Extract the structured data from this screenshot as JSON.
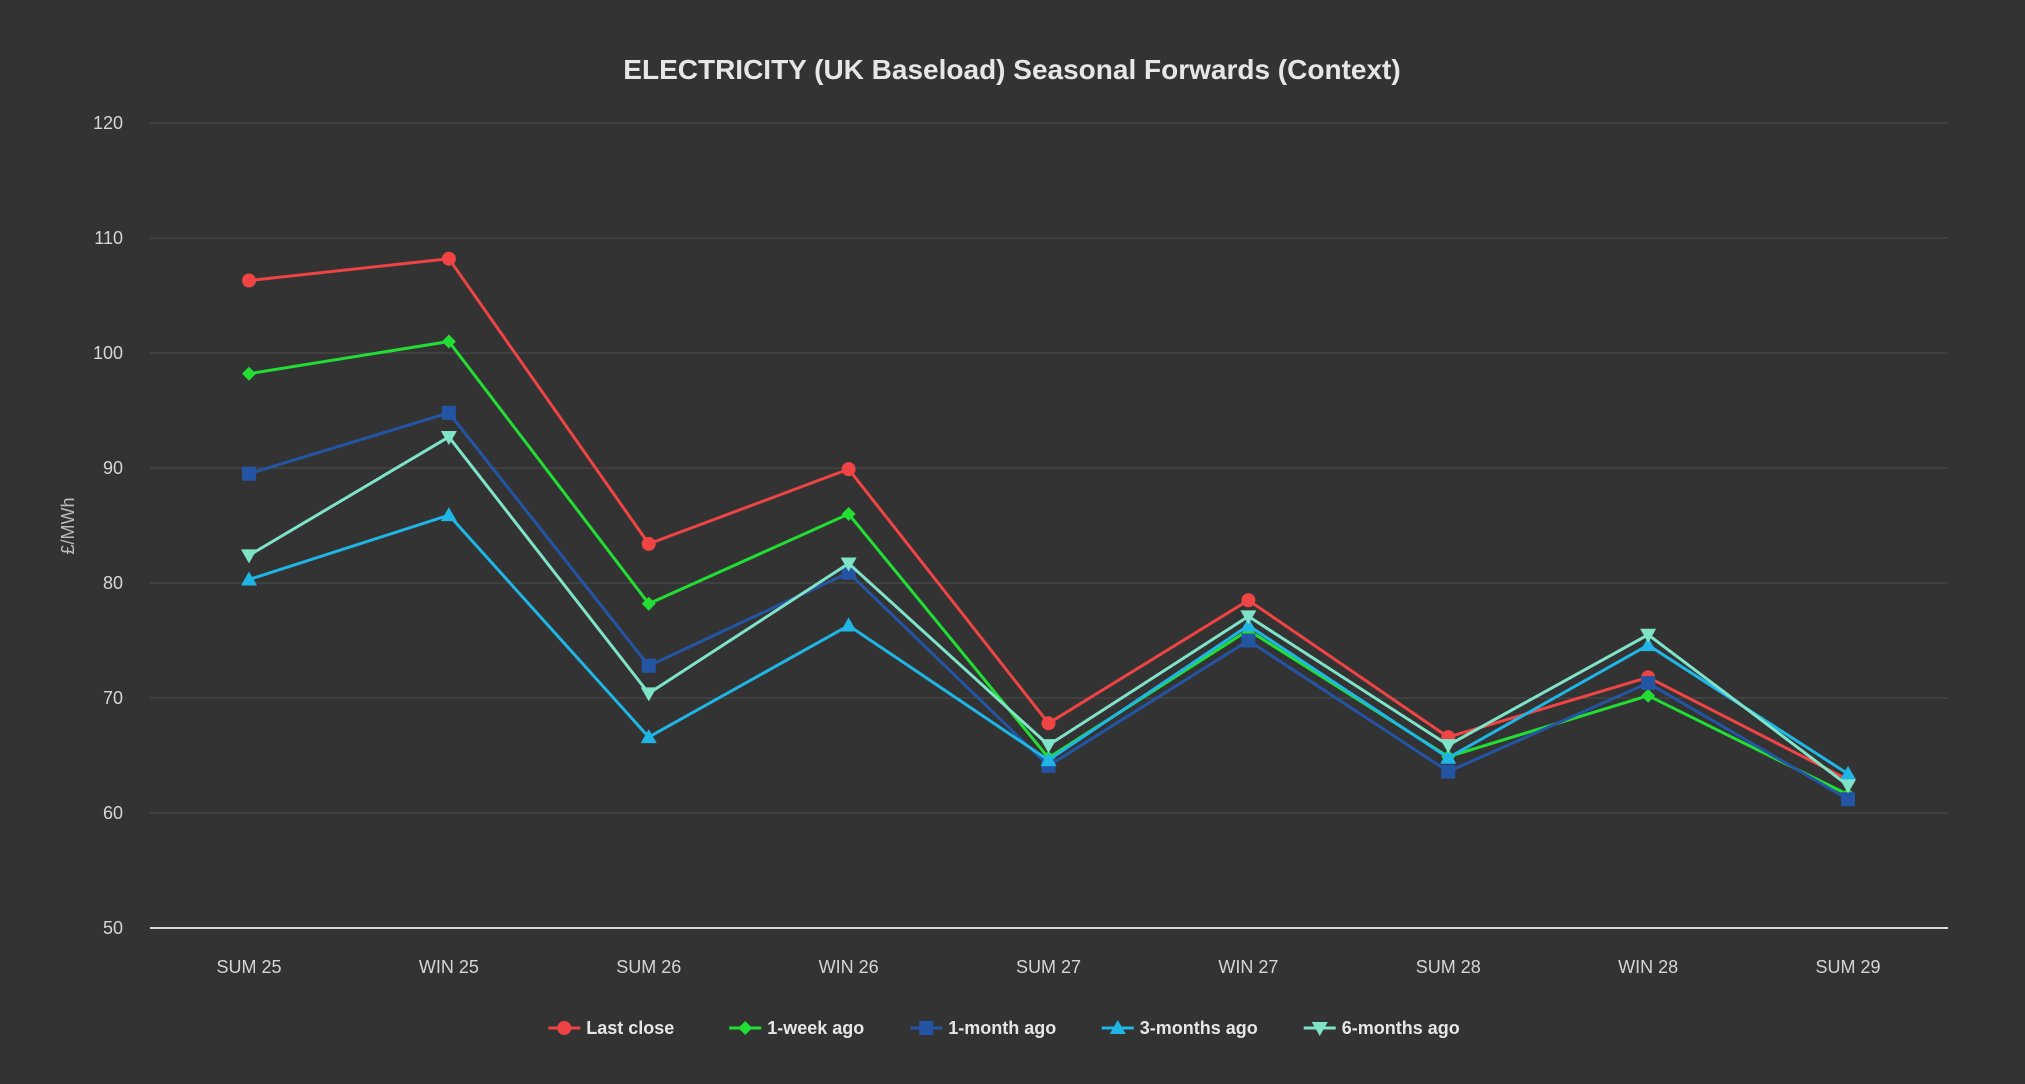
{
  "chart_data": {
    "type": "line",
    "title": "ELECTRICITY (UK Baseload) Seasonal Forwards (Context)",
    "xlabel": "",
    "ylabel": "£/MWh",
    "ylim": [
      50,
      120
    ],
    "yticks": [
      50,
      60,
      70,
      80,
      90,
      100,
      110,
      120
    ],
    "grid": true,
    "legend_position": "bottom-center",
    "categories": [
      "SUM 25",
      "WIN 25",
      "SUM 26",
      "WIN 26",
      "SUM 27",
      "WIN 27",
      "SUM 28",
      "WIN 28",
      "SUM 29"
    ],
    "series": [
      {
        "name": "Last close",
        "marker": "circle",
        "color": "#ef4444",
        "values": [
          106.3,
          108.2,
          83.4,
          89.9,
          67.8,
          78.5,
          66.6,
          71.8,
          62.9
        ]
      },
      {
        "name": "1-week ago",
        "marker": "diamond",
        "color": "#22dd33",
        "values": [
          98.2,
          101.0,
          78.2,
          86.0,
          64.8,
          75.9,
          64.9,
          70.2,
          61.6
        ]
      },
      {
        "name": "1-month ago",
        "marker": "square",
        "color": "#2455a4",
        "values": [
          89.5,
          94.8,
          72.8,
          80.9,
          64.1,
          75.0,
          63.6,
          71.3,
          61.2
        ]
      },
      {
        "name": "3-months ago",
        "marker": "triangle-up",
        "color": "#1fb6e6",
        "values": [
          80.3,
          85.9,
          66.6,
          76.3,
          64.6,
          76.3,
          64.8,
          74.6,
          63.4
        ]
      },
      {
        "name": "6-months ago",
        "marker": "triangle-down",
        "color": "#7fe3c8",
        "values": [
          82.4,
          92.7,
          70.4,
          81.7,
          65.9,
          77.1,
          65.9,
          75.5,
          62.4
        ]
      }
    ]
  }
}
